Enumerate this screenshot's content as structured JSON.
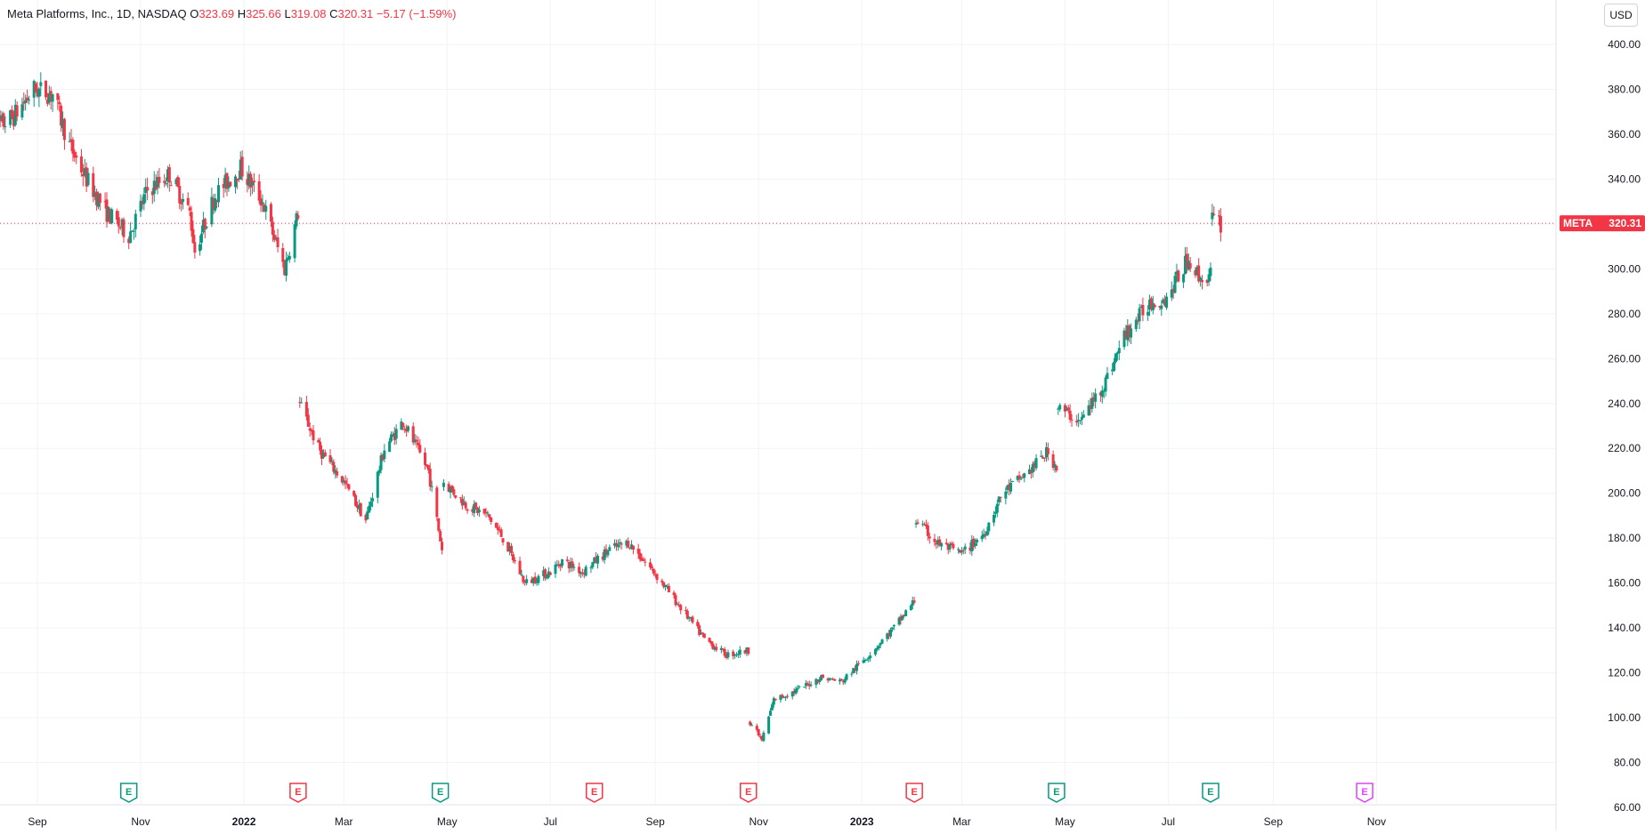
{
  "legend": {
    "symbol": "Meta Platforms, Inc., 1D, NASDAQ",
    "o_label": "O",
    "o_value": "323.69",
    "h_label": "H",
    "h_value": "325.66",
    "l_label": "L",
    "l_value": "319.08",
    "c_label": "C",
    "c_value": "320.31",
    "change": "−5.17 (−1.59%)"
  },
  "currency": "USD",
  "price_tag": {
    "ticker": "META",
    "value": "320.31"
  },
  "colors": {
    "up": "#089981",
    "down": "#f23645",
    "grid": "#f0f3fa",
    "text": "#131722",
    "future_event": "#e040fb"
  },
  "chart_data": {
    "type": "candlestick",
    "y_ticks": [
      "60.00",
      "80.00",
      "100.00",
      "120.00",
      "140.00",
      "160.00",
      "180.00",
      "200.00",
      "220.00",
      "240.00",
      "260.00",
      "280.00",
      "300.00",
      "320.00",
      "340.00",
      "360.00",
      "380.00",
      "400.00"
    ],
    "x_ticks": [
      "Sep",
      "Nov",
      "2022",
      "Mar",
      "May",
      "Jul",
      "Sep",
      "Nov",
      "2023",
      "Mar",
      "May",
      "Jul",
      "Sep",
      "Nov"
    ],
    "ylim": [
      60,
      400
    ],
    "xlim": [
      "2021-08-01",
      "2023-11-30"
    ],
    "last_price": 320.31,
    "grid": true,
    "anchors": [
      [
        "2021-08-02",
        360
      ],
      [
        "2021-08-18",
        368
      ],
      [
        "2021-08-30",
        380
      ],
      [
        "2021-09-10",
        378
      ],
      [
        "2021-09-20",
        355
      ],
      [
        "2021-09-30",
        340
      ],
      [
        "2021-10-12",
        325
      ],
      [
        "2021-10-25",
        315
      ],
      [
        "2021-11-05",
        335
      ],
      [
        "2021-11-18",
        342
      ],
      [
        "2021-11-30",
        325
      ],
      [
        "2021-12-03",
        308
      ],
      [
        "2021-12-15",
        333
      ],
      [
        "2021-12-30",
        345
      ],
      [
        "2022-01-12",
        330
      ],
      [
        "2022-01-25",
        300
      ],
      [
        "2022-02-02",
        325
      ],
      [
        "2022-02-03",
        240
      ],
      [
        "2022-02-14",
        220
      ],
      [
        "2022-03-01",
        205
      ],
      [
        "2022-03-14",
        188
      ],
      [
        "2022-03-25",
        220
      ],
      [
        "2022-04-05",
        232
      ],
      [
        "2022-04-20",
        210
      ],
      [
        "2022-04-28",
        175
      ],
      [
        "2022-04-29",
        205
      ],
      [
        "2022-05-12",
        195
      ],
      [
        "2022-05-25",
        190
      ],
      [
        "2022-06-03",
        180
      ],
      [
        "2022-06-16",
        160
      ],
      [
        "2022-07-01",
        165
      ],
      [
        "2022-07-08",
        170
      ],
      [
        "2022-07-20",
        165
      ],
      [
        "2022-08-05",
        175
      ],
      [
        "2022-08-16",
        178
      ],
      [
        "2022-08-31",
        165
      ],
      [
        "2022-09-15",
        150
      ],
      [
        "2022-09-30",
        135
      ],
      [
        "2022-10-13",
        128
      ],
      [
        "2022-10-26",
        130
      ],
      [
        "2022-10-27",
        98
      ],
      [
        "2022-11-03",
        90
      ],
      [
        "2022-11-10",
        108
      ],
      [
        "2022-11-23",
        112
      ],
      [
        "2022-12-08",
        118
      ],
      [
        "2022-12-20",
        116
      ],
      [
        "2023-01-05",
        128
      ],
      [
        "2023-01-20",
        140
      ],
      [
        "2023-02-01",
        152
      ],
      [
        "2023-02-02",
        188
      ],
      [
        "2023-02-14",
        178
      ],
      [
        "2023-03-01",
        173
      ],
      [
        "2023-03-14",
        182
      ],
      [
        "2023-03-25",
        200
      ],
      [
        "2023-04-10",
        210
      ],
      [
        "2023-04-20",
        218
      ],
      [
        "2023-04-26",
        212
      ],
      [
        "2023-04-27",
        238
      ],
      [
        "2023-05-10",
        232
      ],
      [
        "2023-05-25",
        250
      ],
      [
        "2023-06-05",
        270
      ],
      [
        "2023-06-20",
        285
      ],
      [
        "2023-06-30",
        287
      ],
      [
        "2023-07-13",
        305
      ],
      [
        "2023-07-20",
        295
      ],
      [
        "2023-07-26",
        298
      ],
      [
        "2023-07-27",
        322
      ],
      [
        "2023-08-01",
        320
      ]
    ],
    "earnings_markers": [
      {
        "date": "2021-10-25",
        "label": "E",
        "kind": "beat"
      },
      {
        "date": "2022-02-02",
        "label": "E",
        "kind": "miss"
      },
      {
        "date": "2022-04-27",
        "label": "E",
        "kind": "beat"
      },
      {
        "date": "2022-07-27",
        "label": "E",
        "kind": "miss"
      },
      {
        "date": "2022-10-26",
        "label": "E",
        "kind": "miss"
      },
      {
        "date": "2023-02-01",
        "label": "E",
        "kind": "miss"
      },
      {
        "date": "2023-04-26",
        "label": "E",
        "kind": "beat"
      },
      {
        "date": "2023-07-26",
        "label": "E",
        "kind": "beat"
      },
      {
        "date": "2023-10-25",
        "label": "E",
        "kind": "future"
      }
    ]
  }
}
